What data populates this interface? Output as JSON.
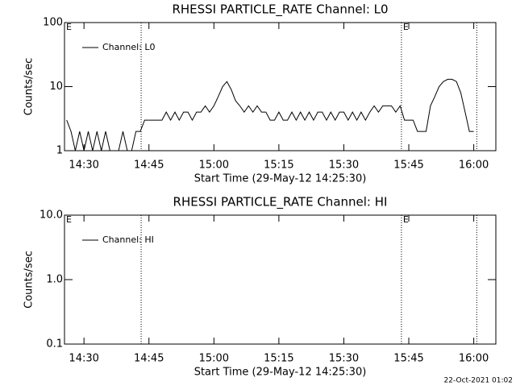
{
  "chart_data": [
    {
      "type": "line",
      "title": "RHESSI PARTICLE_RATE Channel: L0",
      "xlabel": "Start Time (29-May-12 14:25:30)",
      "ylabel": "Counts/sec",
      "log_y": true,
      "legend": "upper left",
      "xlim": [
        865.5,
        965.1
      ],
      "xticks": [
        {
          "value": 870,
          "label": "14:30"
        },
        {
          "value": 885,
          "label": "14:45"
        },
        {
          "value": 900,
          "label": "15:00"
        },
        {
          "value": 915,
          "label": "15:15"
        },
        {
          "value": 930,
          "label": "15:30"
        },
        {
          "value": 945,
          "label": "15:45"
        },
        {
          "value": 960,
          "label": "16:00"
        }
      ],
      "ylim": [
        1,
        100
      ],
      "yticks": [
        1,
        10,
        100
      ],
      "vlines": [
        883.2,
        943.3,
        960.7
      ],
      "annotations": [
        {
          "text": "E",
          "x": 865.5
        },
        {
          "text": "E",
          "x": 943.3
        }
      ],
      "x": [
        866,
        867,
        868,
        869,
        870,
        871,
        872,
        873,
        874,
        875,
        876,
        877,
        878,
        879,
        880,
        881,
        882,
        883,
        884,
        885,
        886,
        887,
        888,
        889,
        890,
        891,
        892,
        893,
        894,
        895,
        896,
        897,
        898,
        899,
        900,
        901,
        902,
        903,
        904,
        905,
        906,
        907,
        908,
        909,
        910,
        911,
        912,
        913,
        914,
        915,
        916,
        917,
        918,
        919,
        920,
        921,
        922,
        923,
        924,
        925,
        926,
        927,
        928,
        929,
        930,
        931,
        932,
        933,
        934,
        935,
        936,
        937,
        938,
        939,
        940,
        941,
        942,
        943,
        944,
        945,
        946,
        947,
        948,
        949,
        950,
        951,
        952,
        953,
        954,
        955,
        956,
        957,
        958,
        959,
        960
      ],
      "series": [
        {
          "name": "Channel: L0",
          "color": "#000000",
          "values": [
            3,
            2,
            1,
            2,
            1,
            2,
            1,
            2,
            1,
            2,
            1,
            1,
            1,
            2,
            1,
            1,
            2,
            2,
            3,
            3,
            3,
            3,
            3,
            4,
            3,
            4,
            3,
            4,
            4,
            3,
            4,
            4,
            5,
            4,
            5,
            7,
            10,
            12,
            9,
            6,
            5,
            4,
            5,
            4,
            5,
            4,
            4,
            3,
            3,
            4,
            3,
            3,
            4,
            3,
            4,
            3,
            4,
            3,
            4,
            4,
            3,
            4,
            3,
            4,
            4,
            3,
            4,
            3,
            4,
            3,
            4,
            5,
            4,
            5,
            5,
            5,
            4,
            5,
            3,
            3,
            3,
            2,
            2,
            2,
            5,
            7,
            10,
            12,
            13,
            13,
            12,
            8,
            4,
            2,
            2
          ]
        }
      ]
    },
    {
      "type": "line",
      "title": "RHESSI PARTICLE_RATE Channel: HI",
      "xlabel": "Start Time (29-May-12 14:25:30)",
      "ylabel": "Counts/sec",
      "log_y": true,
      "legend": "upper left",
      "xlim": [
        865.5,
        965.1
      ],
      "xticks": [
        {
          "value": 870,
          "label": "14:30"
        },
        {
          "value": 885,
          "label": "14:45"
        },
        {
          "value": 900,
          "label": "15:00"
        },
        {
          "value": 915,
          "label": "15:15"
        },
        {
          "value": 930,
          "label": "15:30"
        },
        {
          "value": 945,
          "label": "15:45"
        },
        {
          "value": 960,
          "label": "16:00"
        }
      ],
      "ylim": [
        0.1,
        10
      ],
      "yticks": [
        0.1,
        {
          "value": 1,
          "label": "1.0"
        },
        {
          "value": 10,
          "label": "10.0"
        }
      ],
      "vlines": [
        883.2,
        943.3,
        960.7
      ],
      "annotations": [
        {
          "text": "E",
          "x": 865.5
        },
        {
          "text": "E",
          "x": 943.3
        }
      ],
      "x": [],
      "series": [
        {
          "name": "Channel: HI",
          "color": "#000000",
          "values": []
        }
      ]
    }
  ],
  "footer": "22-Oct-2021 01:02"
}
